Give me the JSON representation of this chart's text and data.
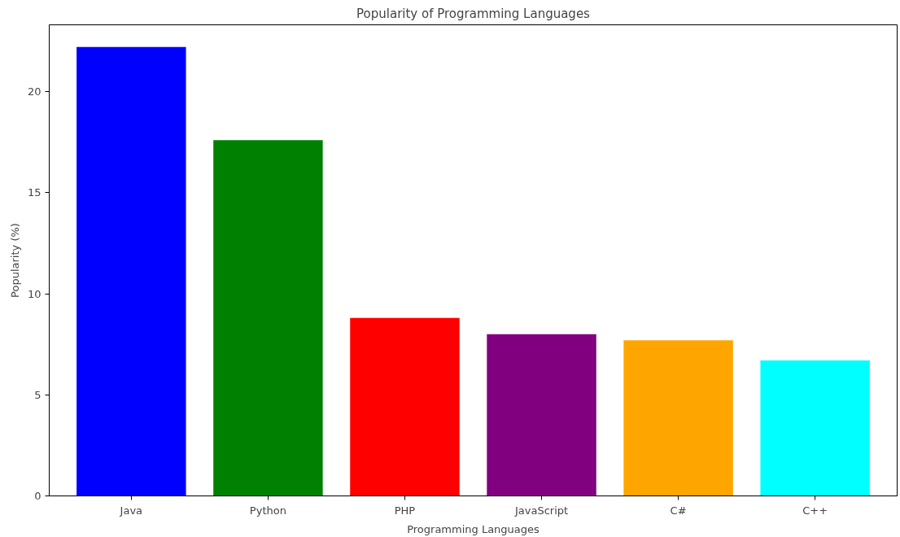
{
  "chart_data": {
    "type": "bar",
    "title": "Popularity of Programming Languages",
    "xlabel": "Programming Languages",
    "ylabel": "Popularity (%)",
    "categories": [
      "Java",
      "Python",
      "PHP",
      "JavaScript",
      "C#",
      "C++"
    ],
    "values": [
      22.2,
      17.6,
      8.8,
      8.0,
      7.7,
      6.7
    ],
    "colors": [
      "#0000ff",
      "#008000",
      "#ff0000",
      "#800080",
      "#ffa500",
      "#00ffff"
    ],
    "ylim": [
      0,
      23.3
    ],
    "yticks": [
      0,
      5,
      10,
      15,
      20
    ],
    "grid": false
  }
}
